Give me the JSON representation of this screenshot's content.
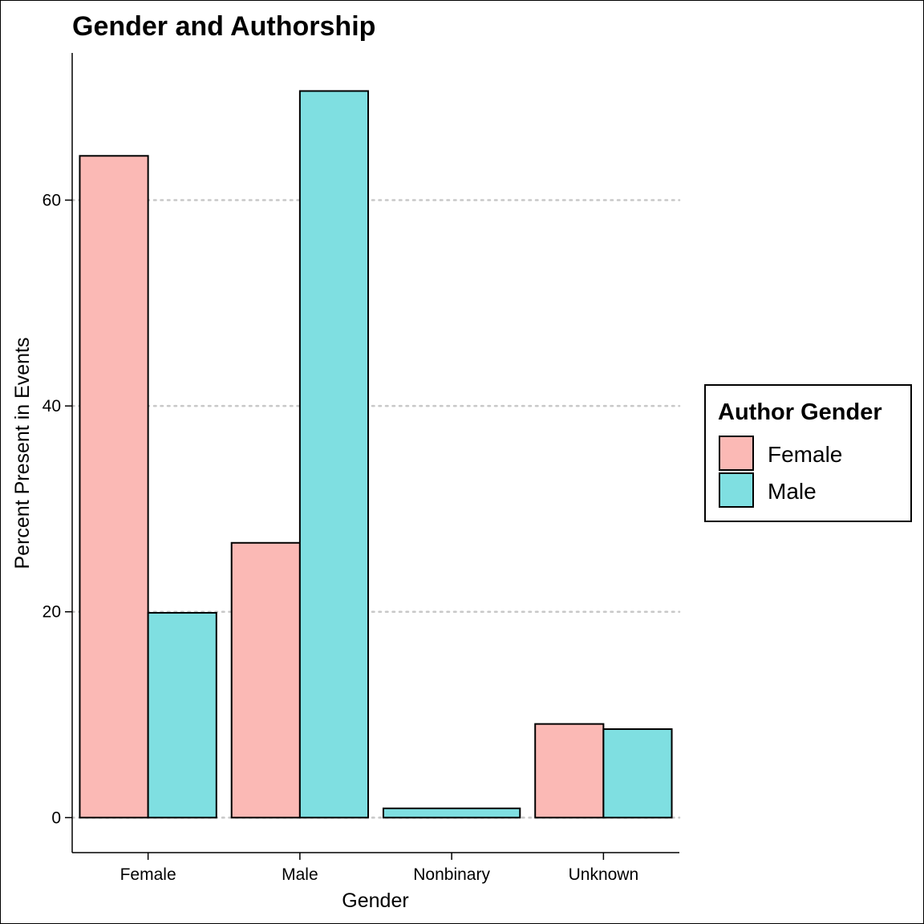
{
  "chart_data": {
    "type": "bar",
    "title": "Gender and Authorship",
    "xlabel": "Gender",
    "ylabel": "Percent Present in Events",
    "categories": [
      "Female",
      "Male",
      "Nonbinary",
      "Unknown"
    ],
    "series": [
      {
        "name": "Female",
        "color": "#FBB9B5",
        "values": [
          64.3,
          26.7,
          0,
          9.1
        ]
      },
      {
        "name": "Male",
        "color": "#7FDFE1",
        "values": [
          19.9,
          70.6,
          0.9,
          8.6
        ]
      }
    ],
    "ylim": [
      -3.4,
      74.3
    ],
    "yticks": [
      0,
      20,
      40,
      60
    ],
    "grid": "horizontal-dotted",
    "legend": {
      "title": "Author Gender",
      "placement": "right"
    }
  }
}
